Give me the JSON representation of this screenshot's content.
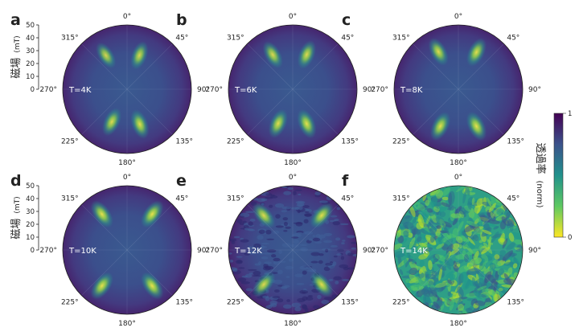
{
  "chart_data": [
    {
      "type": "polar-heatmap",
      "panel_label": "a",
      "annotation": "T=4K",
      "pattern": "clean",
      "angular_ticks": [
        "0°",
        "45°",
        "90°",
        "135°",
        "180°",
        "225°",
        "270°",
        "315°"
      ],
      "radial_ticks": [
        "0",
        "10",
        "20",
        "30",
        "40",
        "50"
      ],
      "rlim": [
        0,
        50
      ],
      "ylabel": "磁場",
      "yunit": "(mT)",
      "lobes": [
        {
          "angle_deg": 328,
          "r": 31,
          "intensity": 0.7
        },
        {
          "angle_deg": 20,
          "r": 28,
          "intensity": 0.75
        },
        {
          "angle_deg": 160,
          "r": 29,
          "intensity": 0.85
        },
        {
          "angle_deg": 205,
          "r": 28,
          "intensity": 0.8
        }
      ]
    },
    {
      "type": "polar-heatmap",
      "panel_label": "b",
      "annotation": "T=6K",
      "pattern": "clean",
      "angular_ticks": [
        "0°",
        "45°",
        "90°",
        "135°",
        "180°",
        "225°",
        "270°",
        "315°"
      ],
      "radial_ticks": [],
      "rlim": [
        0,
        50
      ],
      "lobes": [
        {
          "angle_deg": 330,
          "r": 31,
          "intensity": 0.78
        },
        {
          "angle_deg": 22,
          "r": 29,
          "intensity": 0.8
        },
        {
          "angle_deg": 158,
          "r": 29,
          "intensity": 0.88
        },
        {
          "angle_deg": 203,
          "r": 29,
          "intensity": 0.85
        }
      ]
    },
    {
      "type": "polar-heatmap",
      "panel_label": "c",
      "annotation": "T=8K",
      "pattern": "clean",
      "angular_ticks": [
        "0°",
        "45°",
        "90°",
        "135°",
        "180°",
        "225°",
        "270°",
        "315°"
      ],
      "radial_ticks": [],
      "rlim": [
        0,
        50
      ],
      "lobes": [
        {
          "angle_deg": 332,
          "r": 33,
          "intensity": 0.82
        },
        {
          "angle_deg": 26,
          "r": 32,
          "intensity": 0.85
        },
        {
          "angle_deg": 154,
          "r": 32,
          "intensity": 0.9
        },
        {
          "angle_deg": 206,
          "r": 32,
          "intensity": 0.88
        }
      ]
    },
    {
      "type": "polar-heatmap",
      "panel_label": "d",
      "annotation": "T=10K",
      "pattern": "clean",
      "angular_ticks": [
        "0°",
        "45°",
        "90°",
        "135°",
        "180°",
        "225°",
        "270°",
        "315°"
      ],
      "radial_ticks": [
        "0",
        "10",
        "20",
        "30",
        "40",
        "50"
      ],
      "rlim": [
        0,
        50
      ],
      "ylabel": "磁場",
      "yunit": "(mT)",
      "lobes": [
        {
          "angle_deg": 325,
          "r": 34,
          "intensity": 0.9
        },
        {
          "angle_deg": 35,
          "r": 34,
          "intensity": 0.92
        },
        {
          "angle_deg": 145,
          "r": 34,
          "intensity": 0.92
        },
        {
          "angle_deg": 215,
          "r": 34,
          "intensity": 0.9
        }
      ]
    },
    {
      "type": "polar-heatmap",
      "panel_label": "e",
      "annotation": "T=12K",
      "pattern": "noisy",
      "angular_ticks": [
        "0°",
        "45°",
        "90°",
        "135°",
        "180°",
        "225°",
        "270°",
        "315°"
      ],
      "radial_ticks": [],
      "rlim": [
        0,
        50
      ],
      "lobes": [
        {
          "angle_deg": 320,
          "r": 35,
          "intensity": 0.8
        },
        {
          "angle_deg": 40,
          "r": 35,
          "intensity": 0.85
        },
        {
          "angle_deg": 140,
          "r": 35,
          "intensity": 0.85
        },
        {
          "angle_deg": 220,
          "r": 35,
          "intensity": 0.8
        }
      ]
    },
    {
      "type": "polar-heatmap",
      "panel_label": "f",
      "annotation": "T=14K",
      "pattern": "saturated-noise",
      "angular_ticks": [
        "0°",
        "45°",
        "90°",
        "135°",
        "180°",
        "225°",
        "270°",
        "315°"
      ],
      "radial_ticks": [],
      "rlim": [
        0,
        50
      ],
      "lobes": []
    }
  ],
  "colorbar": {
    "label": "透過率",
    "unit": "(norm)",
    "min_label": "0",
    "max_label": "1",
    "colors": [
      "#fde725",
      "#5ec962",
      "#21918c",
      "#3b528b",
      "#440154"
    ]
  },
  "colors": {
    "low": "#fde725",
    "mid": "#21918c",
    "base": "#3b3f8f",
    "high": "#440154"
  }
}
